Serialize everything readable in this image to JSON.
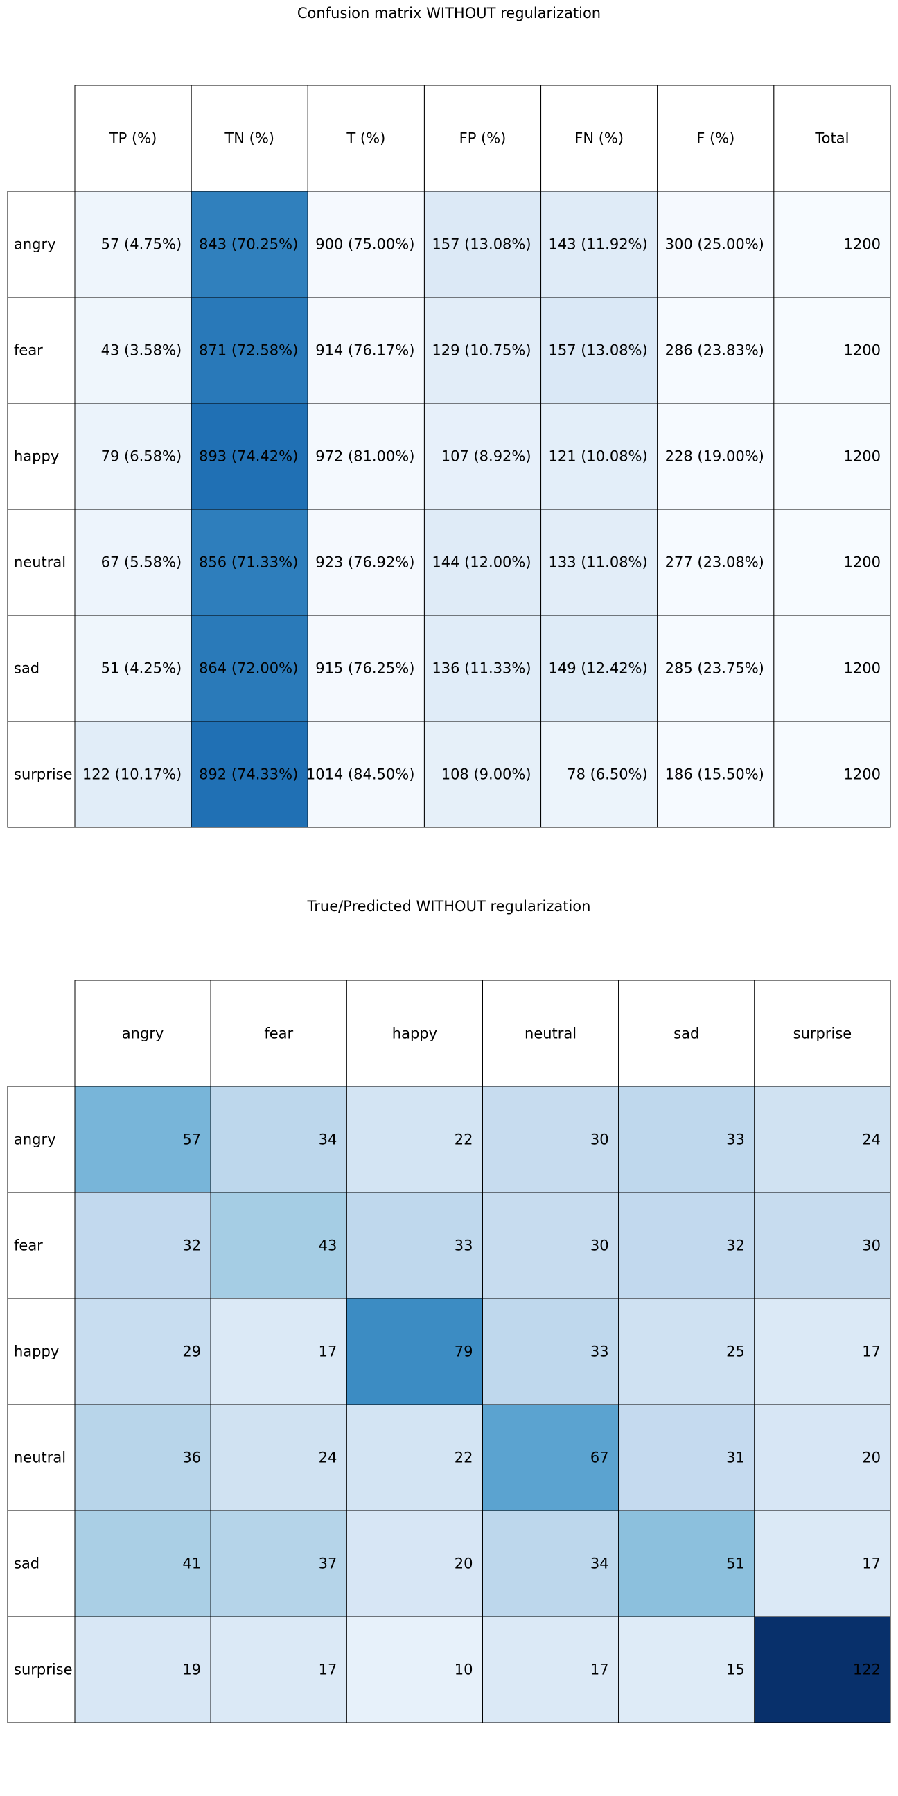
{
  "chart_data": [
    {
      "type": "table",
      "title": "Confusion matrix WITHOUT regularization",
      "columns": [
        "TP (%)",
        "TN (%)",
        "T (%)",
        "FP (%)",
        "FN (%)",
        "F (%)",
        "Total"
      ],
      "rows": [
        {
          "label": "angry",
          "cells": [
            "57 (4.75%)",
            "843 (70.25%)",
            "900 (75.00%)",
            "157 (13.08%)",
            "143 (11.92%)",
            "300 (25.00%)",
            "1200"
          ]
        },
        {
          "label": "fear",
          "cells": [
            "43 (3.58%)",
            "871 (72.58%)",
            "914 (76.17%)",
            "129 (10.75%)",
            "157 (13.08%)",
            "286 (23.83%)",
            "1200"
          ]
        },
        {
          "label": "happy",
          "cells": [
            "79 (6.58%)",
            "893 (74.42%)",
            "972 (81.00%)",
            "107 (8.92%)",
            "121 (10.08%)",
            "228 (19.00%)",
            "1200"
          ]
        },
        {
          "label": "neutral",
          "cells": [
            "67 (5.58%)",
            "856 (71.33%)",
            "923 (76.92%)",
            "144 (12.00%)",
            "133 (11.08%)",
            "277 (23.08%)",
            "1200"
          ]
        },
        {
          "label": "sad",
          "cells": [
            "51 (4.25%)",
            "864 (72.00%)",
            "915 (76.25%)",
            "136 (11.33%)",
            "149 (12.42%)",
            "285 (23.75%)",
            "1200"
          ]
        },
        {
          "label": "surprise",
          "cells": [
            "122 (10.17%)",
            "892 (74.33%)",
            "1014 (84.50%)",
            "108 (9.00%)",
            "78 (6.50%)",
            "186 (15.50%)",
            "1200"
          ]
        }
      ],
      "cell_colors": [
        [
          "#eef5fc",
          "#3080bd",
          "#f5f9fe",
          "#dce9f6",
          "#dfebf7",
          "#f5f9fe",
          "#f7fbff"
        ],
        [
          "#eff6fc",
          "#2979b9",
          "#f5f9fe",
          "#e2edf8",
          "#dae8f6",
          "#f6faff",
          "#f7fbff"
        ],
        [
          "#ebf3fb",
          "#2070b4",
          "#f4f9fe",
          "#e7f0fa",
          "#e3eef9",
          "#f6faff",
          "#f7fbff"
        ],
        [
          "#edf4fc",
          "#2e7ebc",
          "#f5f9fe",
          "#dfebf7",
          "#e2edf8",
          "#f6faff",
          "#f7fbff"
        ],
        [
          "#eff6fc",
          "#2a7ab9",
          "#f5f9fe",
          "#e0ecf8",
          "#deebf7",
          "#f6faff",
          "#f7fbff"
        ],
        [
          "#e1edf8",
          "#2070b4",
          "#f4f9fe",
          "#e6f0f9",
          "#ecf4fb",
          "#f6faff",
          "#f7fbff"
        ]
      ]
    },
    {
      "type": "heatmap",
      "title": "True/Predicted WITHOUT regularization",
      "columns": [
        "angry",
        "fear",
        "happy",
        "neutral",
        "sad",
        "surprise"
      ],
      "rows": [
        "angry",
        "fear",
        "happy",
        "neutral",
        "sad",
        "surprise"
      ],
      "values": [
        [
          57,
          34,
          22,
          30,
          33,
          24
        ],
        [
          32,
          43,
          33,
          30,
          32,
          30
        ],
        [
          29,
          17,
          79,
          33,
          25,
          17
        ],
        [
          36,
          24,
          22,
          67,
          31,
          20
        ],
        [
          41,
          37,
          20,
          34,
          51,
          17
        ],
        [
          19,
          17,
          10,
          17,
          15,
          122
        ]
      ],
      "color_scale": "Blues",
      "color_range": [
        0,
        122
      ]
    }
  ]
}
